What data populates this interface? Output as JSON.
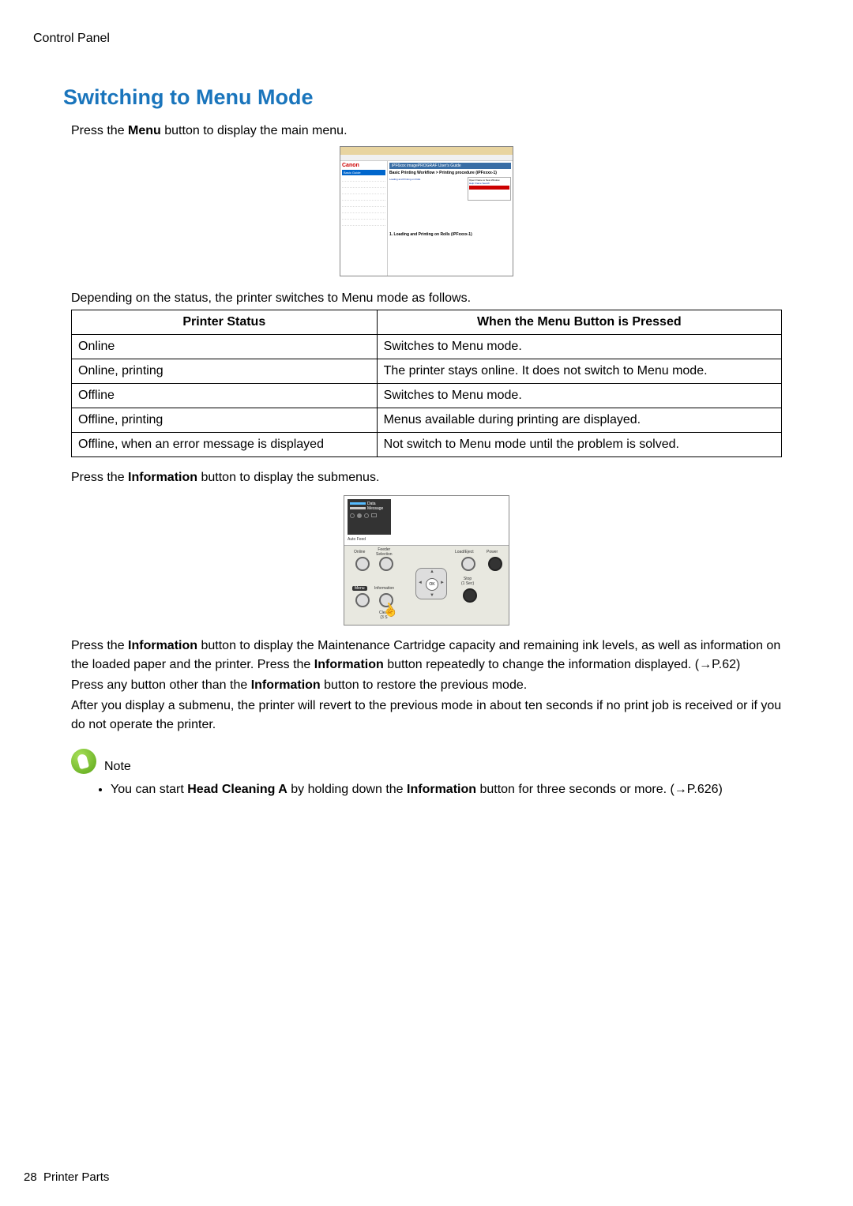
{
  "breadcrumb": "Control Panel",
  "title": "Switching to Menu Mode",
  "intro_prefix": "Press the ",
  "intro_bold": "Menu",
  "intro_suffix": " button to display the main menu.",
  "screenshot1": {
    "logo": "Canon",
    "top_nav": "Top  Search",
    "title_bar": "iPF6xxx imagePROGRAF User's Guide",
    "subtitle": "Basic Printing Workflow > Printing procedure (iPFxxxx-1)",
    "side_items": [
      "Basic Guide",
      "",
      "",
      "",
      "",
      "",
      "",
      "",
      "",
      ""
    ],
    "main_lines": [
      "Loading and Printing on Rolls",
      "",
      "",
      "",
      "",
      "",
      "",
      ""
    ],
    "box_lines": [
      "Open Frame to New Window",
      "Help Frame Search",
      "",
      ""
    ],
    "section": "1. Loading and Printing on Rolls (iPFxxxx-1)"
  },
  "transition_text": "Depending on the status, the printer switches to Menu mode as follows.",
  "table": {
    "headers": [
      "Printer Status",
      "When the Menu Button is Pressed"
    ],
    "rows": [
      [
        "Online",
        "Switches to Menu mode."
      ],
      [
        "Online, printing",
        "The printer stays online. It does not switch to Menu mode."
      ],
      [
        "Offline",
        "Switches to Menu mode."
      ],
      [
        "Offline, printing",
        "Menus available during printing are displayed."
      ],
      [
        "Offline, when an error message is displayed",
        "Not switch to Menu mode until the problem is solved."
      ]
    ]
  },
  "submenu_prefix": "Press the ",
  "submenu_bold": "Information",
  "submenu_suffix": " button to display the submenus.",
  "panel": {
    "lcd_lines": [
      "Data",
      "Message"
    ],
    "autofeed": "Auto Feed",
    "labels": {
      "online": "Online",
      "feeder": "Feeder\nSelection",
      "loadeject": "Load/Eject",
      "power": "Power",
      "menu": "Menu",
      "information": "Information",
      "stop": "Stop\n(1 Sec)",
      "clear": "Clear\n(3 S",
      "ok": "OK"
    }
  },
  "para1_parts": [
    {
      "t": "Press the "
    },
    {
      "b": "Information"
    },
    {
      "t": " button to display the Maintenance Cartridge capacity and remaining ink levels, as well as information on the loaded paper and the printer. Press the "
    },
    {
      "b": "Information"
    },
    {
      "t": " button repeatedly to change the information displayed.  (→P.62)"
    }
  ],
  "para2_parts": [
    {
      "t": "Press any button other than the "
    },
    {
      "b": "Information"
    },
    {
      "t": " button to restore the previous mode."
    }
  ],
  "para3": "After you display a submenu, the printer will revert to the previous mode in about ten seconds if no print job is received or if you do not operate the printer.",
  "note_label": "Note",
  "note_parts": [
    {
      "t": "You can start "
    },
    {
      "b": "Head Cleaning A"
    },
    {
      "t": " by holding down the "
    },
    {
      "b": "Information"
    },
    {
      "t": " button for three seconds or more. (→P.626)"
    }
  ],
  "footer_page": "28",
  "footer_section": "Printer Parts",
  "colors": {
    "title": "#1a75bc",
    "text": "#000000",
    "note_icon_light": "#a8e05a",
    "note_icon_dark": "#5aa516"
  }
}
